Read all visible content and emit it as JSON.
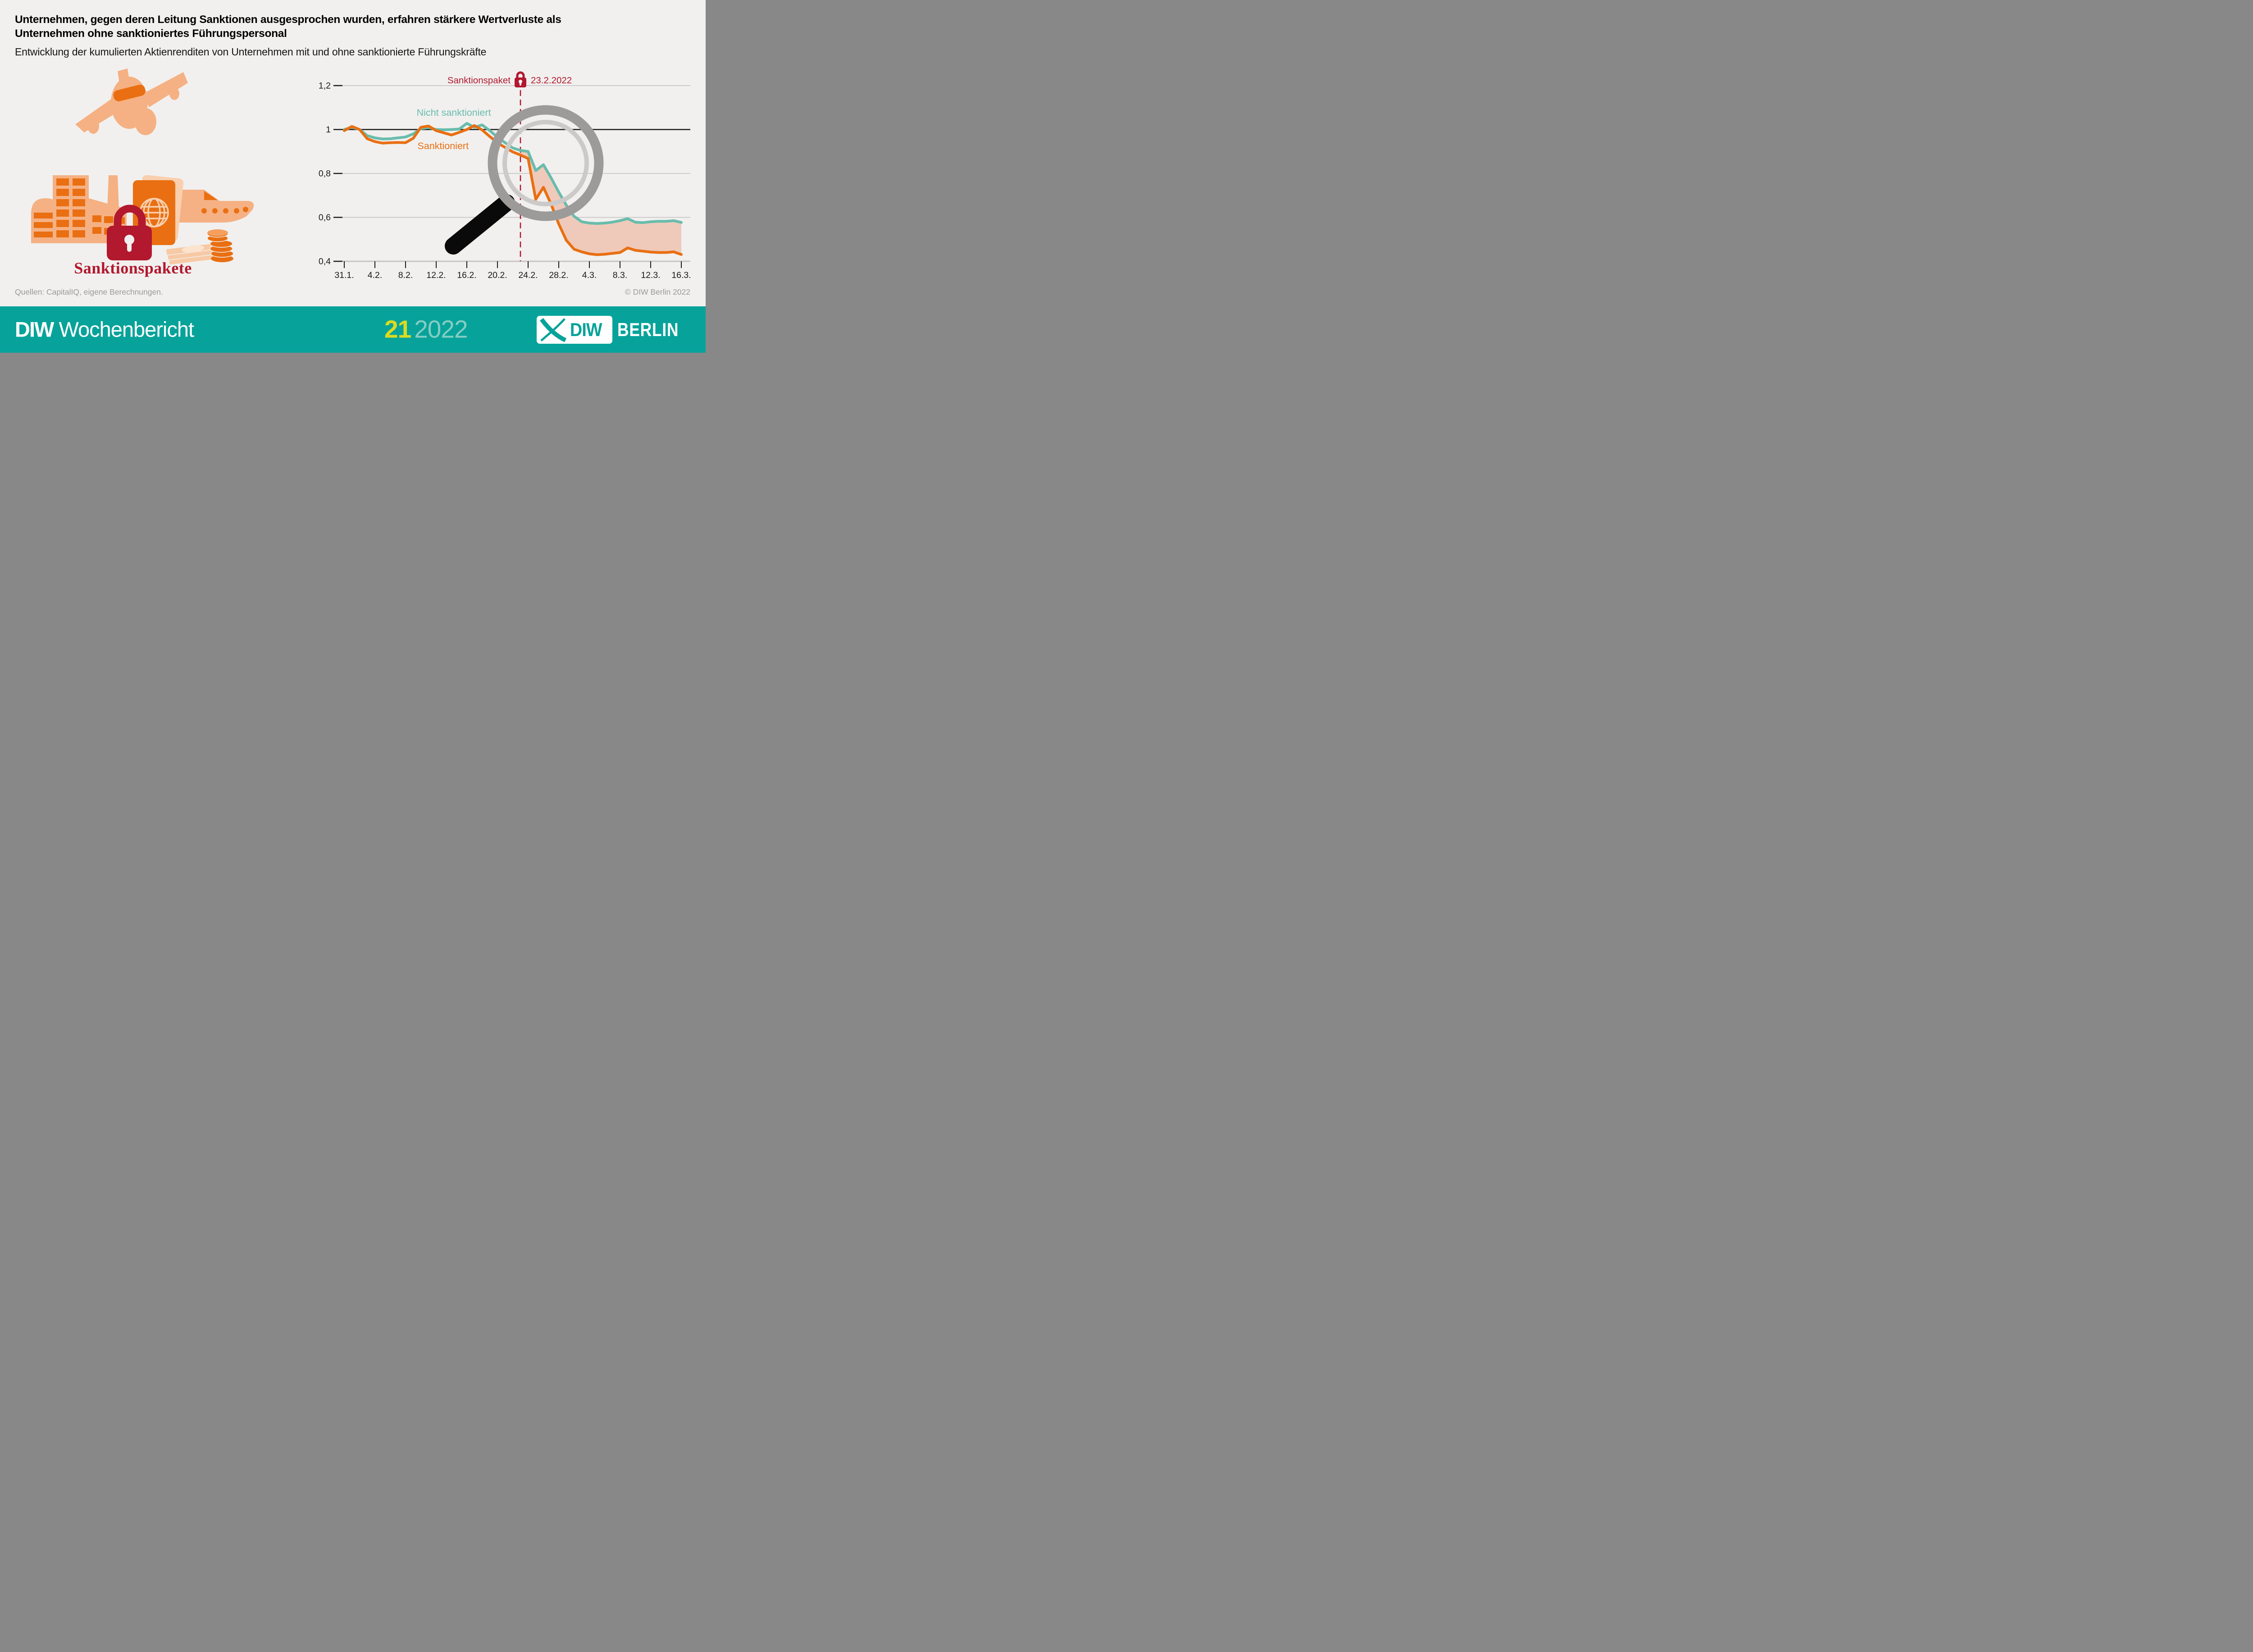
{
  "header": {
    "title_line1": "Unternehmen, gegen deren Leitung Sanktionen ausgesprochen wurden, erfahren stärkere Wertverluste als",
    "title_line2": "Unternehmen ohne sanktioniertes Führungspersonal",
    "subtitle": "Entwicklung der kumulierten Aktienrenditen von Unternehmen mit und ohne sanktionierte Führungskräfte"
  },
  "illustration": {
    "caption": "Sanktionspakete"
  },
  "chart_data": {
    "type": "line",
    "x_unit": "days after 31.1.2022",
    "x_tick_labels": [
      "31.1.",
      "4.2.",
      "8.2.",
      "12.2.",
      "16.2.",
      "20.2.",
      "24.2.",
      "28.2.",
      "4.3.",
      "8.3.",
      "12.3.",
      "16.3."
    ],
    "x_tick_days": [
      0,
      4,
      8,
      12,
      16,
      20,
      24,
      28,
      32,
      36,
      40,
      44
    ],
    "x_range_days": [
      0,
      44
    ],
    "ylim": [
      0.4,
      1.2
    ],
    "y_ticks": [
      {
        "value": 1.2,
        "label": "1,2"
      },
      {
        "value": 1.0,
        "label": "1"
      },
      {
        "value": 0.8,
        "label": "0,8"
      },
      {
        "value": 0.6,
        "label": "0,6"
      },
      {
        "value": 0.4,
        "label": "0,4"
      }
    ],
    "grid": true,
    "emphasized_gridline": 1.0,
    "annotation": {
      "label": "Sanktionspaket",
      "icon": "lock",
      "date": "23.2.2022",
      "day": 23
    },
    "band_fill": {
      "from_day": 23,
      "to_day": 44
    },
    "legend": [
      {
        "label": "Nicht sanktioniert",
        "anchor_day": 14.3,
        "anchor_value": 1.077
      },
      {
        "label": "Sanktioniert",
        "anchor_day": 12.9,
        "anchor_value": 0.925
      }
    ],
    "series": [
      {
        "name": "Nicht sanktioniert",
        "color_key": "line_teal",
        "values": [
          1.0,
          1.01,
          1.0,
          0.972,
          0.962,
          0.957,
          0.958,
          0.962,
          0.966,
          0.98,
          1.004,
          1.009,
          1.0,
          0.999,
          1.0,
          1.002,
          1.028,
          1.01,
          1.021,
          0.995,
          0.965,
          0.94,
          0.916,
          0.905,
          0.9,
          0.813,
          0.84,
          0.78,
          0.715,
          0.655,
          0.605,
          0.58,
          0.574,
          0.572,
          0.574,
          0.578,
          0.585,
          0.594,
          0.578,
          0.576,
          0.58,
          0.582,
          0.582,
          0.585,
          0.577
        ]
      },
      {
        "name": "Sanktioniert",
        "color_key": "line_orange",
        "values": [
          0.995,
          1.014,
          1.0,
          0.958,
          0.945,
          0.938,
          0.94,
          0.941,
          0.94,
          0.96,
          1.01,
          1.016,
          0.995,
          0.985,
          0.975,
          0.987,
          1.0,
          1.018,
          0.998,
          0.968,
          0.94,
          0.918,
          0.898,
          0.884,
          0.868,
          0.682,
          0.737,
          0.66,
          0.57,
          0.495,
          0.455,
          0.443,
          0.434,
          0.43,
          0.432,
          0.436,
          0.44,
          0.461,
          0.45,
          0.446,
          0.442,
          0.44,
          0.44,
          0.443,
          0.431
        ]
      }
    ]
  },
  "source_row": {
    "sources": "Quellen: CapitalIQ, eigene Berechnungen.",
    "copyright": "© DIW Berlin 2022"
  },
  "footer": {
    "brand_bold": "DIW",
    "brand_rest": "Wochenbericht",
    "issue_number": "21",
    "issue_year": "2022",
    "logo_diw": "DIW",
    "logo_berlin": "BERLIN"
  },
  "colors": {
    "background": "#f1f0ef",
    "accent_red": "#b2182e",
    "line_teal": "#69bcac",
    "line_orange": "#e96f12",
    "band_fill": "#efcaba",
    "grid_gray": "#c6c5c4",
    "text_black": "#1a1a1a",
    "muted_gray": "#9b9a99",
    "footer_teal": "#07a39a",
    "issue_yellow": "#dadb21",
    "issue_year_teal": "#85cdc4",
    "illustration_light": "#f5b183",
    "illustration_dark": "#e96f12",
    "magnifier_gray": "#9c9b9a",
    "magnifier_inner_gray": "#cbcac9",
    "magnifier_handle": "#0a0a0a"
  }
}
